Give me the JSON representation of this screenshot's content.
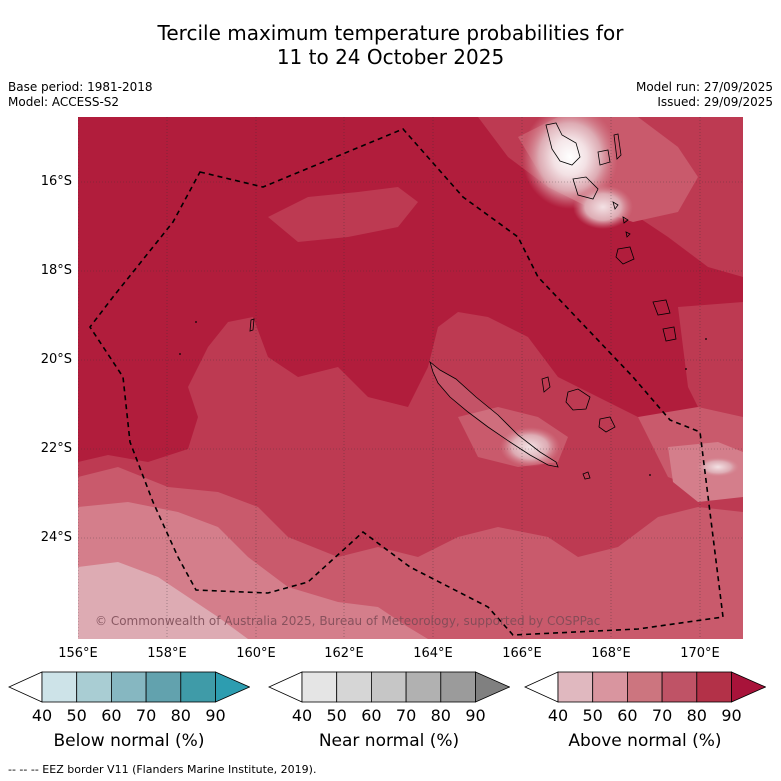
{
  "title_line1": "Tercile maximum temperature probabilities for",
  "title_line2": "11 to 24 October 2025",
  "meta_left": {
    "base_period": "Base period: 1981-2018",
    "model": "Model: ACCESS-S2"
  },
  "meta_right": {
    "model_run": "Model run: 27/09/2025",
    "issued": "Issued: 29/09/2025"
  },
  "lat_labels": [
    "16°S",
    "18°S",
    "20°S",
    "22°S",
    "24°S"
  ],
  "lon_labels": [
    "156°E",
    "158°E",
    "160°E",
    "162°E",
    "164°E",
    "166°E",
    "168°E",
    "170°E"
  ],
  "copyright": "© Commonwealth of Australia 2025, Bureau of Meteorology, supported by COSPPac",
  "colorbars": [
    {
      "title": "Below normal (%)",
      "ticks": [
        "40",
        "50",
        "60",
        "70",
        "80",
        "90"
      ],
      "colors": [
        "#ffffff",
        "#cde3e8",
        "#a9cdd3",
        "#86b7c1",
        "#62a2ae",
        "#3f9ba8",
        "#2d9db0"
      ]
    },
    {
      "title": "Near normal (%)",
      "ticks": [
        "40",
        "50",
        "60",
        "70",
        "80",
        "90"
      ],
      "colors": [
        "#ffffff",
        "#e5e5e5",
        "#d6d6d6",
        "#c6c6c6",
        "#b1b1b1",
        "#9b9b9b",
        "#808080"
      ]
    },
    {
      "title": "Above normal (%)",
      "ticks": [
        "40",
        "50",
        "60",
        "70",
        "80",
        "90"
      ],
      "colors": [
        "#ffffff",
        "#e0b8bf",
        "#d9959f",
        "#cc757f",
        "#bf5366",
        "#b33148",
        "#a8133a"
      ]
    }
  ],
  "map_colors": {
    "p90": "#b11d3c",
    "p80": "#bd3a52",
    "p70": "#c95a6c",
    "p60": "#d47e8b",
    "p50": "#ddabb3",
    "p40": "#f3e1e4"
  },
  "footnote": "--  --  -- EEZ border V11 (Flanders Marine Institute, 2019)."
}
